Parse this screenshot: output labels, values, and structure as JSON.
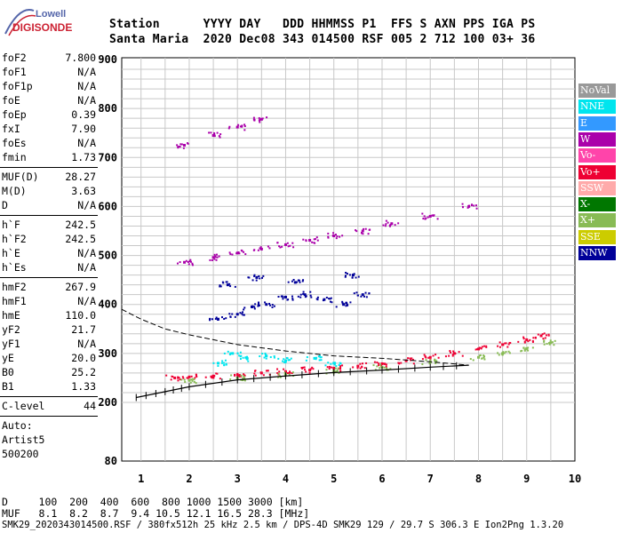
{
  "logo": {
    "top": "Lowell",
    "bottom": "DIGISONDE"
  },
  "header": {
    "line1": "Station      YYYY DAY   DDD HHMMSS P1  FFS S AXN PPS IGA PS",
    "line2": "Santa Maria  2020 Dec08 343 014500 RSF 005 2 712 100 03+ 36"
  },
  "params_group1": [
    {
      "name": "foF2",
      "value": "7.800"
    },
    {
      "name": "foF1",
      "value": "N/A"
    },
    {
      "name": "foF1p",
      "value": "N/A"
    },
    {
      "name": "foE",
      "value": "N/A"
    },
    {
      "name": "foEp",
      "value": "0.39"
    },
    {
      "name": "fxI",
      "value": "7.90"
    },
    {
      "name": "foEs",
      "value": "N/A"
    },
    {
      "name": "fmin",
      "value": "1.73"
    }
  ],
  "params_group2": [
    {
      "name": "MUF(D)",
      "value": "28.27"
    },
    {
      "name": "M(D)",
      "value": "3.63"
    },
    {
      "name": "D",
      "value": "N/A"
    }
  ],
  "params_group3": [
    {
      "name": "h`F",
      "value": "242.5"
    },
    {
      "name": "h`F2",
      "value": "242.5"
    },
    {
      "name": "h`E",
      "value": "N/A"
    },
    {
      "name": "h`Es",
      "value": "N/A"
    }
  ],
  "params_group4": [
    {
      "name": "hmF2",
      "value": "267.9"
    },
    {
      "name": "hmF1",
      "value": "N/A"
    },
    {
      "name": "hmE",
      "value": "110.0"
    },
    {
      "name": "yF2",
      "value": "21.7"
    },
    {
      "name": "yF1",
      "value": "N/A"
    },
    {
      "name": "yE",
      "value": "20.0"
    },
    {
      "name": "B0",
      "value": "25.2"
    },
    {
      "name": "B1",
      "value": "1.33"
    }
  ],
  "clevel": {
    "name": "C-level",
    "value": "44"
  },
  "auto": {
    "line1": "Auto:",
    "line2": "Artist5",
    "line3": "500200"
  },
  "legend": [
    {
      "label": "NoVal",
      "color": "#999999"
    },
    {
      "label": "NNE",
      "color": "#00e5ee"
    },
    {
      "label": "E",
      "color": "#3399ff"
    },
    {
      "label": "W",
      "color": "#aa00aa"
    },
    {
      "label": "Vo-",
      "color": "#ff44aa"
    },
    {
      "label": "Vo+",
      "color": "#ee0033"
    },
    {
      "label": "SSW",
      "color": "#ffaaaa"
    },
    {
      "label": "X-",
      "color": "#007700"
    },
    {
      "label": "X+",
      "color": "#88bb55"
    },
    {
      "label": "SSE",
      "color": "#cccc00"
    },
    {
      "label": "NNW",
      "color": "#000099"
    }
  ],
  "footer": {
    "d_line": "D     100  200  400  600  800 1000 1500 3000 [km]",
    "muf_line": "MUF   8.1  8.2  8.7  9.4 10.5 12.1 16.5 28.3 [MHz]",
    "info_line": "SMK29_2020343014500.RSF / 380fx512h 25 kHz 2.5 km / DPS-4D SMK29 129 / 29.7 S 306.3 E Ion2Png 1.3.20"
  },
  "chart_data": {
    "type": "scatter",
    "xlabel": "",
    "ylabel": "",
    "xlim": [
      0.6,
      10
    ],
    "ylim": [
      80,
      900
    ],
    "x_ticks": [
      "1",
      "2",
      "3",
      "4",
      "5",
      "6",
      "7",
      "8",
      "9",
      "10"
    ],
    "y_ticks": [
      "80",
      "200",
      "300",
      "400",
      "500",
      "600",
      "700",
      "800",
      "900"
    ],
    "y_tick_values": [
      80,
      200,
      300,
      400,
      500,
      600,
      700,
      800,
      900
    ],
    "grid": true,
    "legend_position": "right",
    "series": [
      {
        "name": "Vo+",
        "color": "#ee0033",
        "points": [
          [
            1.7,
            250
          ],
          [
            2.0,
            252
          ],
          [
            2.5,
            254
          ],
          [
            3.0,
            256
          ],
          [
            3.5,
            260
          ],
          [
            4.0,
            263
          ],
          [
            4.5,
            266
          ],
          [
            5.0,
            270
          ],
          [
            5.5,
            274
          ],
          [
            6.0,
            279
          ],
          [
            6.5,
            285
          ],
          [
            7.0,
            292
          ],
          [
            7.5,
            300
          ],
          [
            8.0,
            309
          ],
          [
            8.5,
            318
          ],
          [
            9.0,
            328
          ],
          [
            9.3,
            336
          ]
        ]
      },
      {
        "name": "X+",
        "color": "#88bb55",
        "points": [
          [
            2.0,
            245
          ],
          [
            3.0,
            250
          ],
          [
            4.0,
            257
          ],
          [
            5.0,
            264
          ],
          [
            6.0,
            272
          ],
          [
            7.0,
            282
          ],
          [
            8.0,
            292
          ],
          [
            8.5,
            300
          ],
          [
            9.0,
            310
          ],
          [
            9.5,
            322
          ]
        ]
      },
      {
        "name": "W",
        "color": "#aa00aa",
        "points": [
          [
            1.9,
            486
          ],
          [
            2.5,
            496
          ],
          [
            3.0,
            505
          ],
          [
            3.5,
            513
          ],
          [
            4.0,
            522
          ],
          [
            4.5,
            531
          ],
          [
            5.0,
            540
          ],
          [
            5.6,
            550
          ],
          [
            1.9,
            725
          ],
          [
            2.5,
            745
          ],
          [
            3.0,
            762
          ],
          [
            3.5,
            778
          ],
          [
            6.2,
            565
          ],
          [
            7.0,
            580
          ],
          [
            7.8,
            600
          ]
        ]
      },
      {
        "name": "NNW",
        "color": "#000099",
        "points": [
          [
            2.6,
            370
          ],
          [
            3.0,
            380
          ],
          [
            3.3,
            395
          ],
          [
            3.6,
            400
          ],
          [
            4.0,
            415
          ],
          [
            4.4,
            420
          ],
          [
            4.8,
            410
          ],
          [
            5.2,
            400
          ],
          [
            5.6,
            420
          ],
          [
            2.8,
            440
          ],
          [
            3.4,
            455
          ],
          [
            4.2,
            445
          ],
          [
            5.4,
            460
          ]
        ]
      },
      {
        "name": "NNE",
        "color": "#00e5ee",
        "points": [
          [
            2.6,
            280
          ],
          [
            2.9,
            300
          ],
          [
            3.2,
            290
          ],
          [
            3.6,
            295
          ],
          [
            4.0,
            285
          ],
          [
            4.6,
            290
          ],
          [
            5.0,
            280
          ]
        ]
      }
    ],
    "virtual_height_trace": {
      "color": "#000000",
      "points": [
        [
          0.9,
          210
        ],
        [
          1.5,
          222
        ],
        [
          2.0,
          232
        ],
        [
          3.0,
          246
        ],
        [
          4.0,
          254
        ],
        [
          5.0,
          261
        ],
        [
          6.0,
          266
        ],
        [
          7.0,
          272
        ],
        [
          7.8,
          276
        ]
      ]
    },
    "profile_dashed": {
      "color": "#000000",
      "points": [
        [
          0.6,
          390
        ],
        [
          1.0,
          370
        ],
        [
          1.5,
          350
        ],
        [
          2.0,
          338
        ],
        [
          3.0,
          318
        ],
        [
          4.0,
          305
        ],
        [
          5.0,
          295
        ],
        [
          6.0,
          290
        ],
        [
          7.0,
          283
        ],
        [
          7.8,
          276
        ]
      ]
    }
  }
}
